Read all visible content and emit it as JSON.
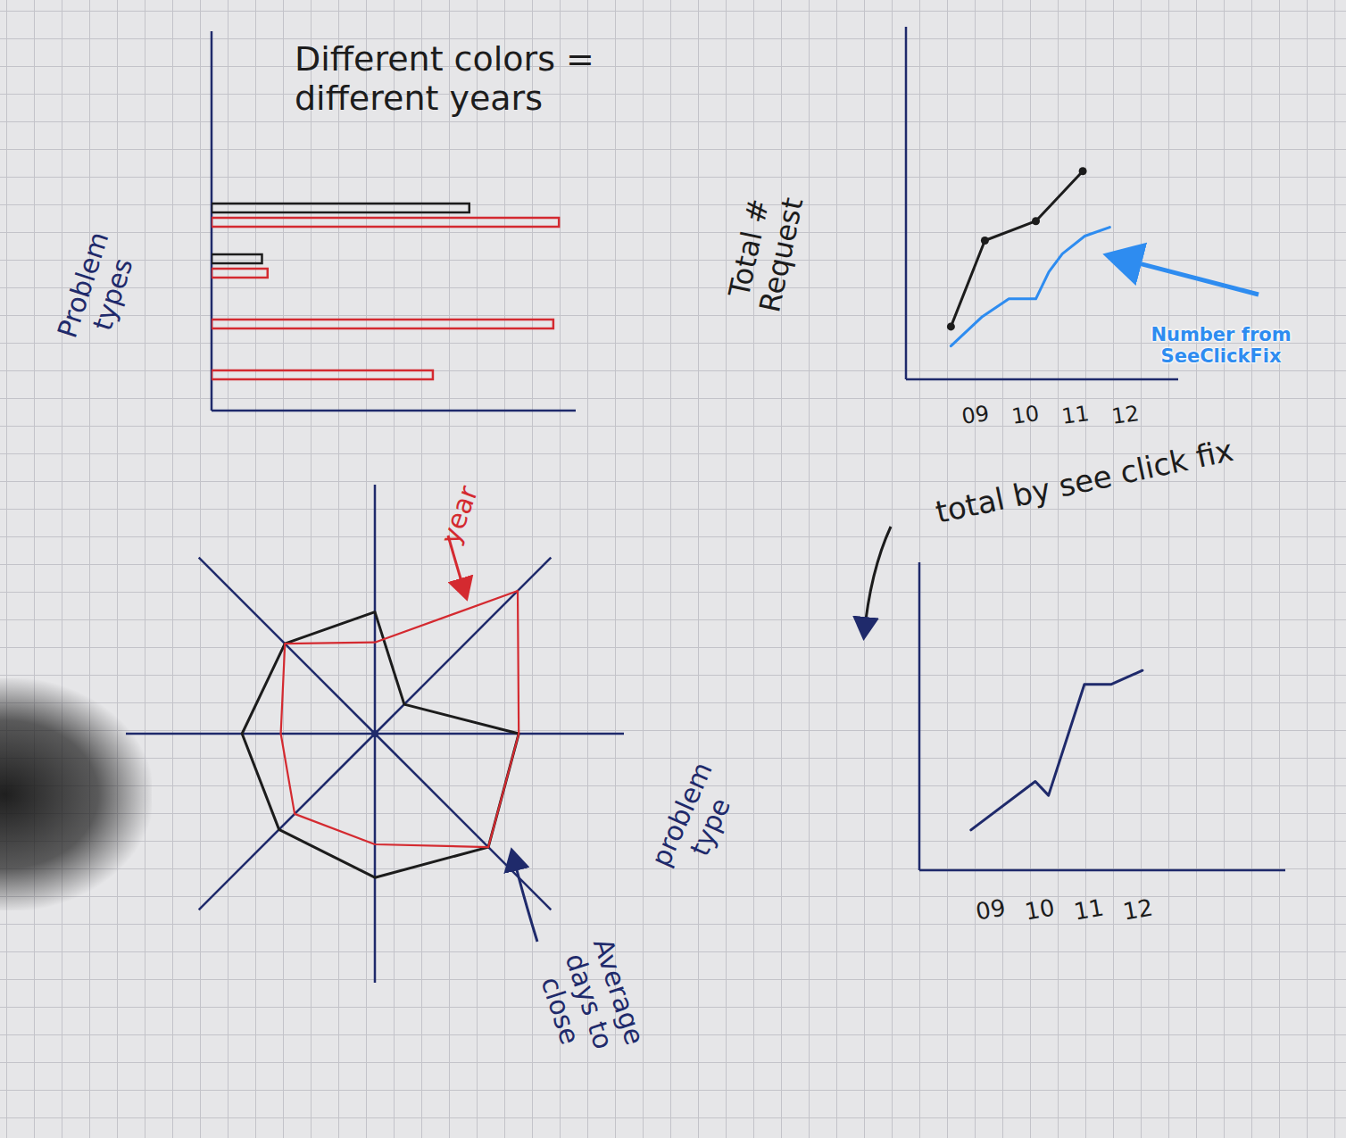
{
  "chart_data": [
    {
      "type": "bar",
      "orientation": "horizontal",
      "title": "Different colors = different years",
      "y_label": "Problem types",
      "categories": [
        null,
        null,
        null,
        null
      ],
      "series": [
        {
          "color": "#1c1c1c",
          "values": [
            9.2,
            1.8,
            null,
            null
          ]
        },
        {
          "color": "#d42a30",
          "values": [
            12.4,
            2,
            12.2,
            7.9
          ]
        }
      ],
      "xlim": [
        0,
        13
      ],
      "tick_labels": false
    },
    {
      "type": "line",
      "y_label": "Total # Request",
      "annotation": "Number from SeeClickFix",
      "series": [
        {
          "color": "#1c1c1c",
          "marker": "circle",
          "x": [
            8.5,
            9.18,
            10.2,
            11.14
          ],
          "values": [
            1.9,
            5,
            5.7,
            7.5
          ]
        },
        {
          "color": "#2e8cf0",
          "x": [
            8.5,
            9.13,
            9.66,
            10.2,
            10.46,
            10.73,
            11.18,
            11.68
          ],
          "values": [
            1.2,
            2.26,
            2.9,
            2.9,
            3.87,
            4.52,
            5.16,
            5.48
          ]
        }
      ],
      "xlim": [
        7.6,
        13.05
      ],
      "xticks": [
        {
          "value": 9,
          "label": "09"
        },
        10,
        11,
        12
      ],
      "ylim": [
        0,
        12.7
      ],
      "tick_labels": "x"
    },
    {
      "type": "radar",
      "categories": [
        null,
        null,
        null,
        null,
        null,
        null,
        null,
        null
      ],
      "series": [
        {
          "color": "#1c1c1c",
          "values": [
            4.4,
            1.5,
            5.2,
            5.8,
            5.2,
            4.9,
            4.8,
            4.6
          ]
        },
        {
          "color": "#d42a30",
          "values": [
            3.3,
            7.3,
            5.2,
            5.8,
            4.0,
            4.1,
            3.4,
            4.6
          ]
        }
      ],
      "rlim": [
        0,
        9
      ],
      "tick_labels": false,
      "annotations": [
        "year",
        "problem type",
        "Average days to close"
      ]
    },
    {
      "type": "line",
      "annotation": "total by see click fix",
      "series": [
        {
          "color": "#1f2a6b",
          "x": [
            8.6,
            9.91,
            10.18,
            10.91,
            11.45,
            12.09
          ],
          "values": [
            1.45,
            3.2,
            2.7,
            6.7,
            6.7,
            7.2
          ]
        }
      ],
      "xlim": [
        7.55,
        15
      ],
      "xticks": [
        {
          "value": 9,
          "label": "09"
        },
        10,
        11,
        12
      ],
      "ylim": [
        0,
        11.1
      ],
      "tick_labels": "x"
    }
  ]
}
